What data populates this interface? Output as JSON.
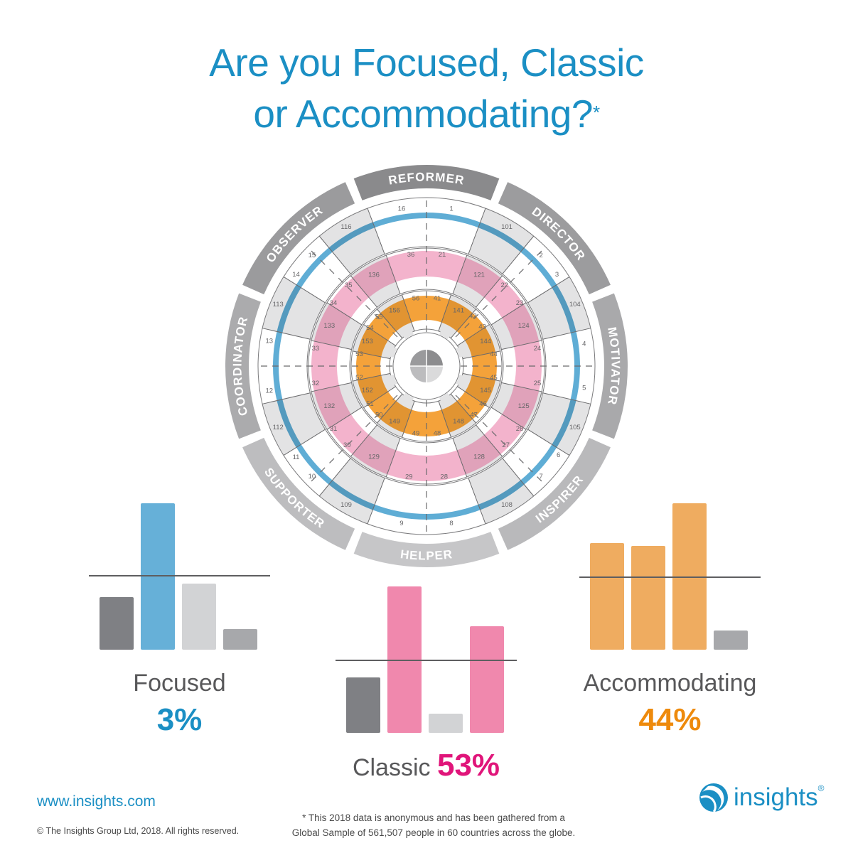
{
  "title": {
    "line1": "Are you Focused, Classic",
    "line2": "or Accommodating?",
    "asterisk": "*"
  },
  "colors": {
    "brand_blue": "#1b8fc4",
    "focused_blue": "#66b0d8",
    "classic_pink": "#f088ad",
    "classic_pct": "#e0157a",
    "accommodating_orange": "#efac60",
    "accommodating_pct": "#ee8a0c",
    "dark_gray": "#7f8084",
    "light_gray": "#d2d3d5",
    "mid_gray": "#a7a8ab",
    "wheel_pink": "#f3b3cc",
    "wheel_orange": "#f4a23a",
    "wheel_blue": "#5fadd5",
    "wheel_shade": "#e3e3e4"
  },
  "wheel": {
    "type_labels": [
      {
        "name": "REFORMER",
        "angle": 0,
        "color": "#8a8a8c"
      },
      {
        "name": "DIRECTOR",
        "angle": 45,
        "color": "#9c9c9e"
      },
      {
        "name": "MOTIVATOR",
        "angle": 90,
        "color": "#a9a9ab"
      },
      {
        "name": "INSPIRER",
        "angle": 135,
        "color": "#b9b9bb"
      },
      {
        "name": "HELPER",
        "angle": 180,
        "color": "#c6c6c8"
      },
      {
        "name": "SUPPORTER",
        "angle": 225,
        "color": "#bdbdbf"
      },
      {
        "name": "COORDINATOR",
        "angle": 270,
        "color": "#ababad"
      },
      {
        "name": "OBSERVER",
        "angle": 315,
        "color": "#9b9b9d"
      }
    ],
    "outer_numbers": [
      "1",
      "2",
      "3",
      "4",
      "5",
      "6",
      "7",
      "8",
      "9",
      "10",
      "11",
      "12",
      "13",
      "14",
      "15",
      "16"
    ],
    "outer_shaded": [
      "101",
      "104",
      "105",
      "108",
      "109",
      "112",
      "113",
      "116"
    ],
    "middle_numbers": [
      "21",
      "22",
      "23",
      "24",
      "25",
      "26",
      "27",
      "28",
      "29",
      "30",
      "31",
      "32",
      "33",
      "34",
      "35",
      "36"
    ],
    "middle_shaded": [
      "121",
      "124",
      "125",
      "128",
      "129",
      "132",
      "133",
      "136"
    ],
    "inner_numbers": [
      "41",
      "42",
      "43",
      "44",
      "45",
      "46",
      "47",
      "48",
      "49",
      "50",
      "51",
      "52",
      "53",
      "54",
      "55",
      "56"
    ],
    "inner_shaded": [
      "141",
      "144",
      "145",
      "148",
      "149",
      "152",
      "153",
      "156"
    ]
  },
  "chart_data": [
    {
      "type": "bar",
      "title": "Focused",
      "value_label": "3%",
      "categories": [
        "1",
        "2",
        "3",
        "4"
      ],
      "values": [
        36,
        100,
        45,
        14
      ],
      "bar_colors": [
        "#7f8084",
        "#66b0d8",
        "#d2d3d5",
        "#a7a8ab"
      ],
      "baseline": 51,
      "ylim": [
        0,
        100
      ]
    },
    {
      "type": "bar",
      "title": "Classic",
      "value_label": "53%",
      "categories": [
        "1",
        "2",
        "3",
        "4"
      ],
      "values": [
        38,
        100,
        13,
        73
      ],
      "bar_colors": [
        "#7f8084",
        "#f088ad",
        "#d2d3d5",
        "#f088ad"
      ],
      "baseline": 50,
      "ylim": [
        0,
        100
      ]
    },
    {
      "type": "bar",
      "title": "Accommodating",
      "value_label": "44%",
      "categories": [
        "1",
        "2",
        "3",
        "4"
      ],
      "values": [
        73,
        71,
        100,
        13
      ],
      "bar_colors": [
        "#efac60",
        "#efac60",
        "#efac60",
        "#a7a8ab"
      ],
      "baseline": 50,
      "ylim": [
        0,
        100
      ]
    }
  ],
  "charts": {
    "focused": {
      "name": "Focused",
      "pct": "3%"
    },
    "classic": {
      "name": "Classic",
      "pct": "53%"
    },
    "accommodating": {
      "name": "Accommodating",
      "pct": "44%"
    }
  },
  "footer": {
    "url": "www.insights.com",
    "copyright": "© The Insights Group Ltd, 2018. All rights reserved.",
    "footnote_line1": "* This 2018 data is anonymous and has been gathered from a",
    "footnote_line2": "Global Sample of 561,507 people in 60 countries across the globe.",
    "logo_text": "insights",
    "logo_mark": "®"
  }
}
